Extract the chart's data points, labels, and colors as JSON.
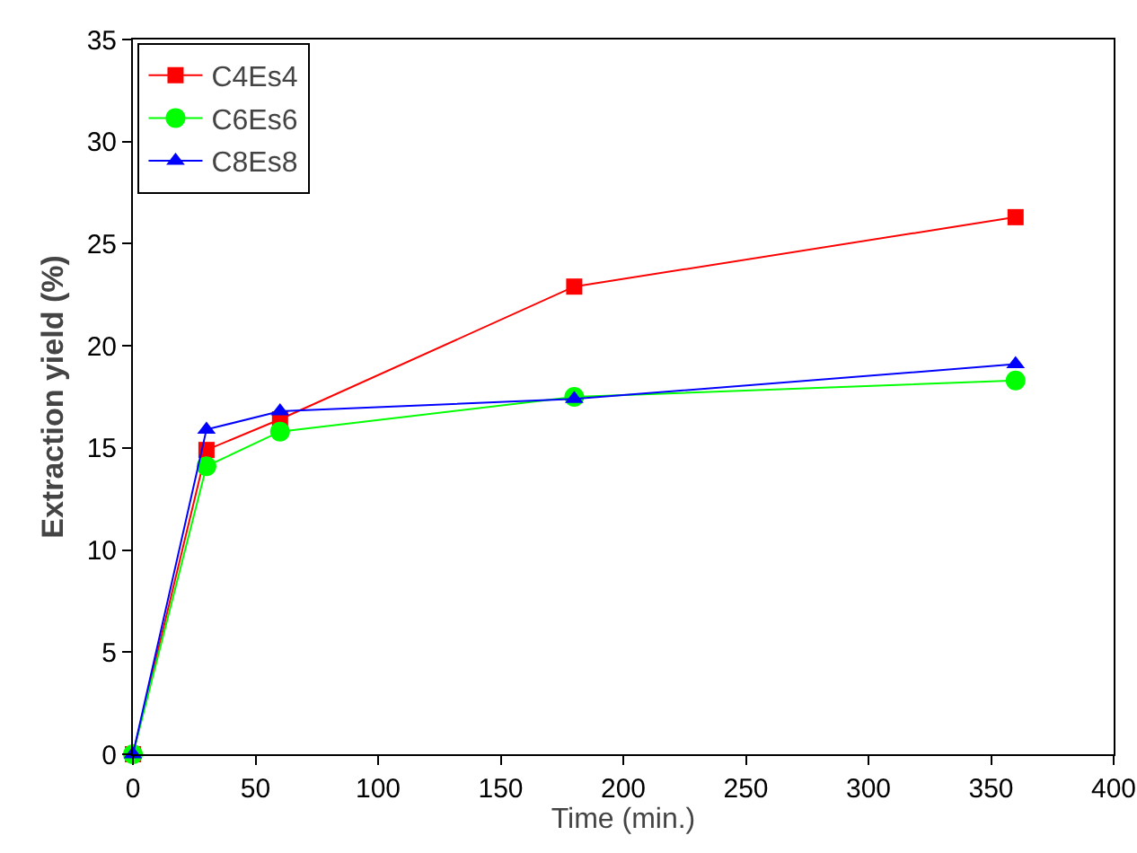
{
  "chart_data": {
    "type": "line",
    "xlabel": "Time (min.)",
    "ylabel": "Extraction yield (%)",
    "x": [
      0,
      30,
      60,
      180,
      360
    ],
    "series": [
      {
        "name": "C4Es4",
        "color": "#ff0000",
        "marker": "square",
        "values": [
          0,
          14.9,
          16.4,
          22.9,
          26.3
        ]
      },
      {
        "name": "C6Es6",
        "color": "#00ff00",
        "marker": "circle",
        "values": [
          0,
          14.1,
          15.8,
          17.5,
          18.3
        ]
      },
      {
        "name": "C8Es8",
        "color": "#0000ff",
        "marker": "triangle",
        "values": [
          0,
          15.9,
          16.8,
          17.4,
          19.1
        ]
      }
    ],
    "xlim": [
      0,
      400
    ],
    "xticks": [
      0,
      50,
      100,
      150,
      200,
      250,
      300,
      350,
      400
    ],
    "ylim": [
      0,
      35
    ],
    "yticks": [
      0,
      5,
      10,
      15,
      20,
      25,
      30,
      35
    ],
    "grid": false,
    "legend": "top left",
    "line_style": "solid"
  }
}
